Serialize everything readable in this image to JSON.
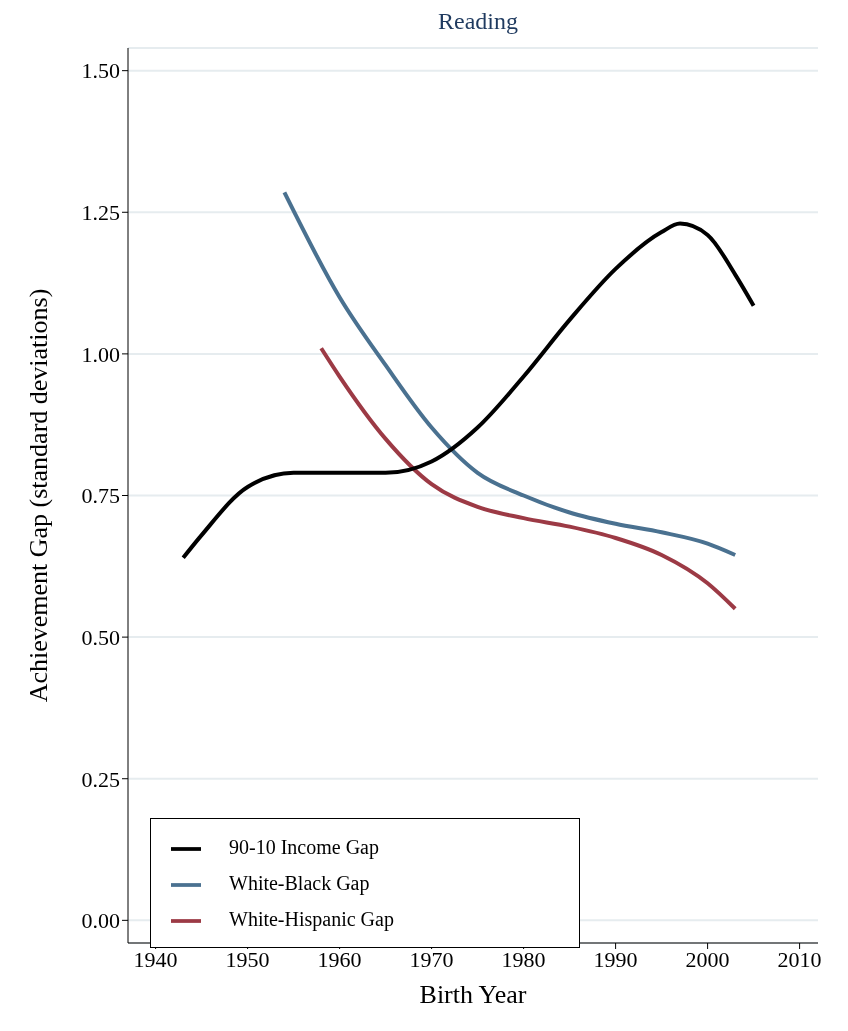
{
  "chart_data": {
    "type": "line",
    "title": "Reading",
    "xlabel": "Birth Year",
    "ylabel": "Achievement Gap (standard deviations)",
    "xlim": [
      1937,
      2012
    ],
    "xticks": [
      1940,
      1950,
      1960,
      1970,
      1980,
      1990,
      2000,
      2010
    ],
    "ylim": [
      -0.04,
      1.54
    ],
    "yticks": [
      {
        "value": 0,
        "label": "0.00"
      },
      {
        "value": 0.25,
        "label": "0.25"
      },
      {
        "value": 0.5,
        "label": "0.50"
      },
      {
        "value": 0.75,
        "label": "0.75"
      },
      {
        "value": 1,
        "label": "1.00"
      },
      {
        "value": 1.25,
        "label": "1.25"
      },
      {
        "value": 1.5,
        "label": "1.50"
      }
    ],
    "grid": "y",
    "legend": "bottom left",
    "marker": "none",
    "line_style": "solid",
    "series": [
      {
        "name": "White-Black Gap",
        "color": "#4a7190",
        "x": [
          1954,
          1960,
          1965,
          1970,
          1975,
          1980,
          1985,
          1990,
          1995,
          2000,
          2003
        ],
        "values": [
          1.285,
          1.1,
          0.98,
          0.87,
          0.79,
          0.75,
          0.72,
          0.7,
          0.685,
          0.665,
          0.645
        ]
      },
      {
        "name": "White-Hispanic Gap",
        "color": "#9c3a45",
        "x": [
          1958,
          1960,
          1965,
          1970,
          1975,
          1980,
          1985,
          1990,
          1995,
          2000,
          2003
        ],
        "values": [
          1.01,
          0.96,
          0.85,
          0.77,
          0.73,
          0.71,
          0.695,
          0.675,
          0.645,
          0.595,
          0.55
        ]
      },
      {
        "name": "90-10 Income Gap",
        "color": "#000000",
        "x": [
          1943,
          1945,
          1950,
          1955,
          1960,
          1965,
          1970,
          1975,
          1980,
          1985,
          1990,
          1995,
          1997,
          2000,
          2003,
          2005
        ],
        "values": [
          0.64,
          0.68,
          0.765,
          0.79,
          0.79,
          0.79,
          0.81,
          0.87,
          0.96,
          1.06,
          1.15,
          1.215,
          1.23,
          1.21,
          1.14,
          1.085
        ]
      }
    ]
  }
}
